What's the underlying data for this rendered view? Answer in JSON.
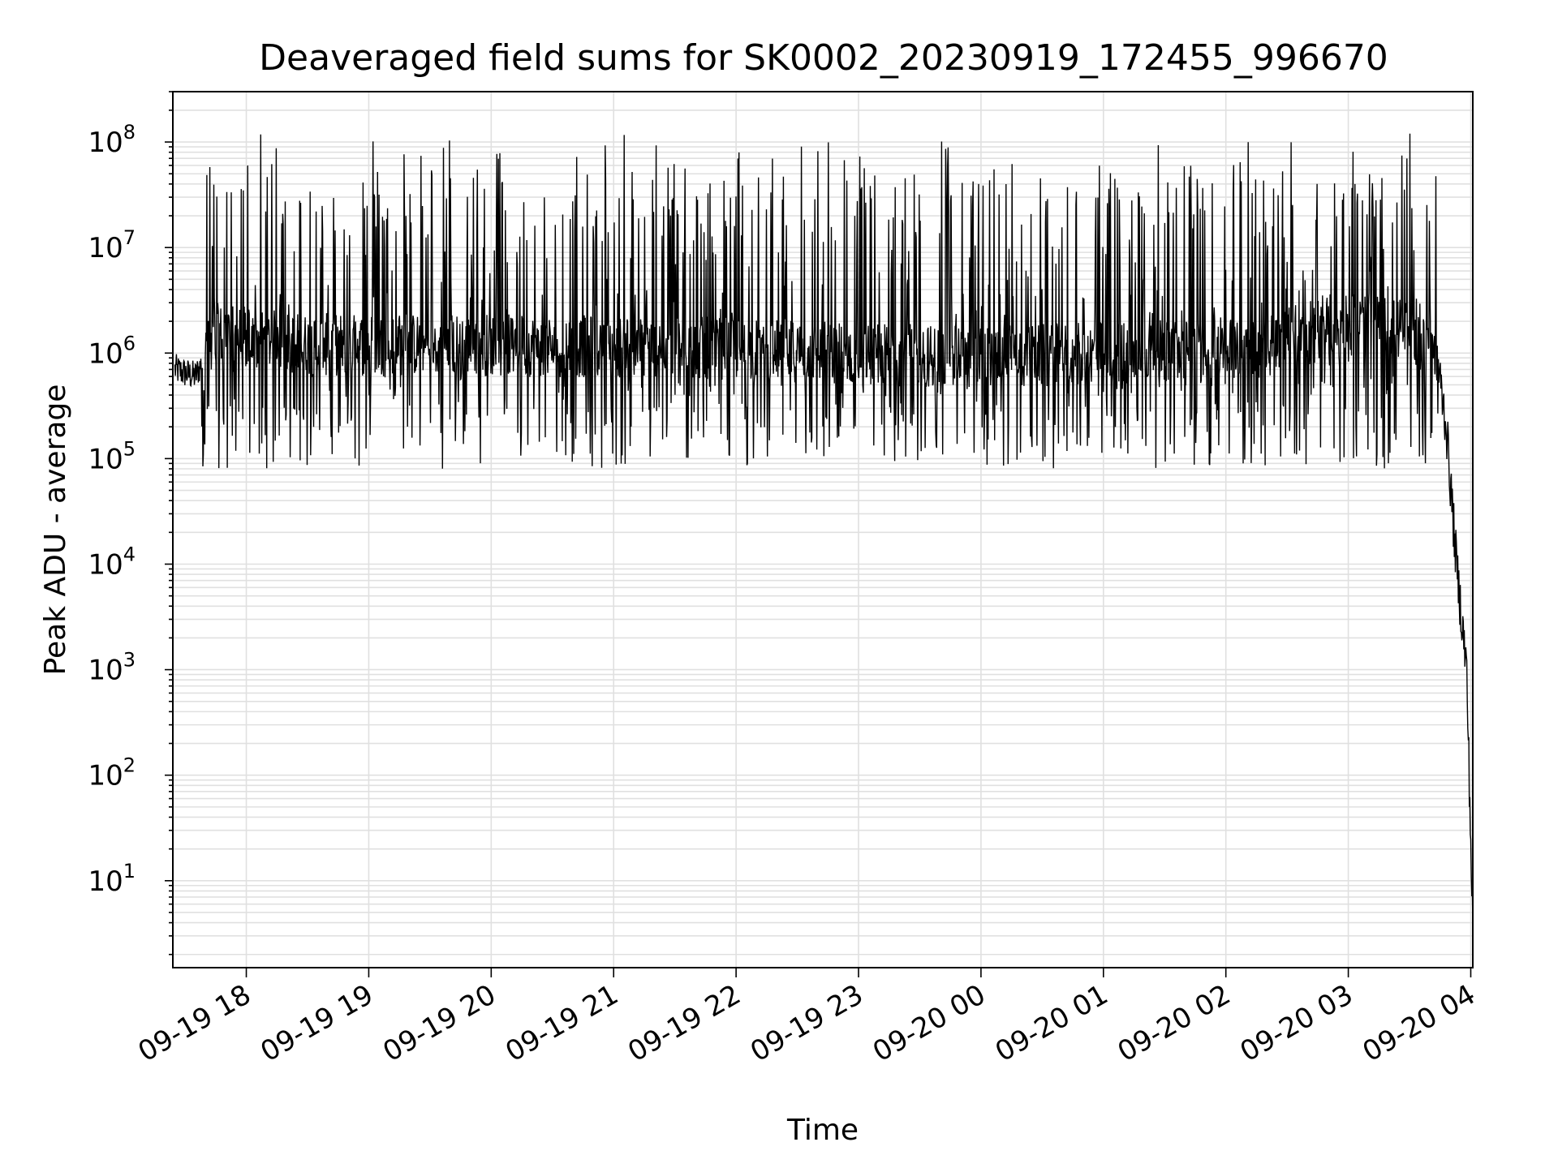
{
  "chart_data": {
    "type": "line",
    "title": "Deaveraged field sums for SK0002_20230919_172455_996670",
    "xlabel": "Time",
    "ylabel": "Peak ADU - average",
    "yscale": "log",
    "ylim": [
      1.5,
      300000000
    ],
    "y_tick_exponents": [
      "1",
      "2",
      "3",
      "4",
      "5",
      "6",
      "7",
      "8"
    ],
    "y_tick_base": "10",
    "xlim": [
      "2023-09-19 17:24",
      "2023-09-20 04:01"
    ],
    "x_ticks": [
      {
        "label": "09-19 18",
        "time": "2023-09-19 18:00"
      },
      {
        "label": "09-19 19",
        "time": "2023-09-19 19:00"
      },
      {
        "label": "09-19 20",
        "time": "2023-09-19 20:00"
      },
      {
        "label": "09-19 21",
        "time": "2023-09-19 21:00"
      },
      {
        "label": "09-19 22",
        "time": "2023-09-19 22:00"
      },
      {
        "label": "09-19 23",
        "time": "2023-09-19 23:00"
      },
      {
        "label": "09-20 00",
        "time": "2023-09-20 00:00"
      },
      {
        "label": "09-20 01",
        "time": "2023-09-20 01:00"
      },
      {
        "label": "09-20 02",
        "time": "2023-09-20 02:00"
      },
      {
        "label": "09-20 03",
        "time": "2023-09-20 03:00"
      },
      {
        "label": "09-20 04",
        "time": "2023-09-20 04:00"
      }
    ],
    "grid": true,
    "line_color": "#000000",
    "grid_color": "#e0e0e0",
    "series": [
      {
        "description_points": [
          {
            "time": "2023-09-19 17:25",
            "value": 700000
          },
          {
            "time": "2023-09-19 17:35",
            "value": 600000
          },
          {
            "time": "2023-09-19 17:45",
            "value": 1500000
          },
          {
            "time": "2023-09-19 18:30",
            "value": 1200000
          },
          {
            "time": "2023-09-19 20:00",
            "value": 1200000
          },
          {
            "time": "2023-09-19 22:00",
            "value": 1100000
          },
          {
            "time": "2023-09-20 00:00",
            "value": 900000
          },
          {
            "time": "2023-09-20 02:00",
            "value": 1100000
          },
          {
            "time": "2023-09-20 03:00",
            "value": 2000000
          },
          {
            "time": "2023-09-20 03:42",
            "value": 1500000
          },
          {
            "time": "2023-09-20 03:48",
            "value": 200000
          },
          {
            "time": "2023-09-20 03:53",
            "value": 10000
          },
          {
            "time": "2023-09-20 03:58",
            "value": 1000
          },
          {
            "time": "2023-09-20 04:01",
            "value": 3.5
          }
        ],
        "typical_floor": 80000,
        "typical_peak": 50000000,
        "max_value": 120000000
      }
    ]
  }
}
